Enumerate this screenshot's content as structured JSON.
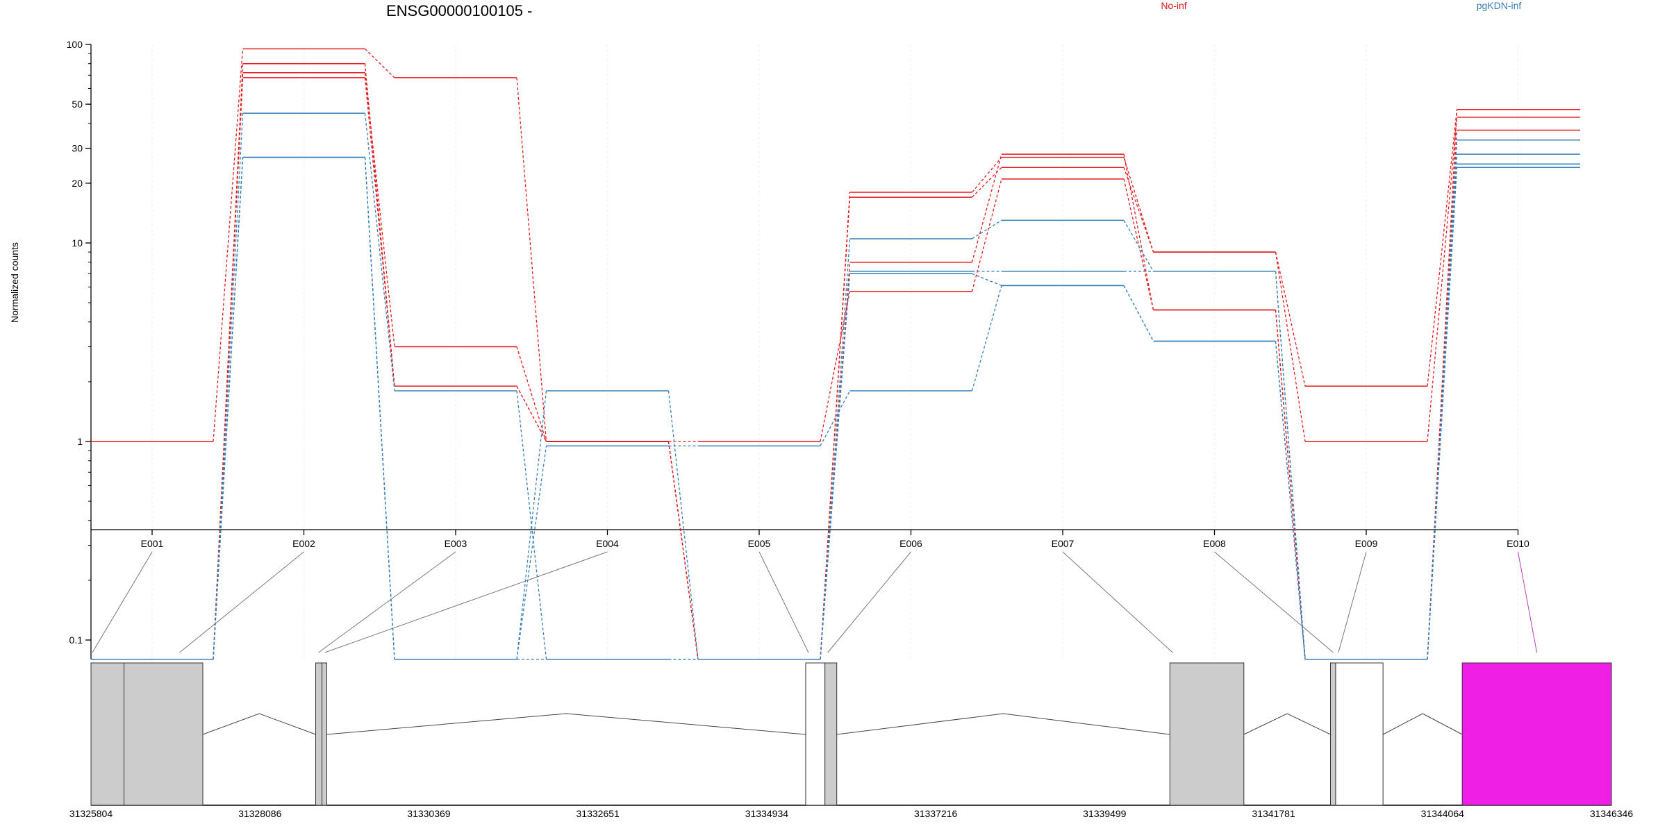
{
  "chart_data": {
    "type": "line",
    "title": "ENSG00000100105 -",
    "ylabel": "Normalized counts",
    "xlabel": "",
    "yscale": "log",
    "ylim": [
      0.08,
      100
    ],
    "y_ticks": [
      100,
      50,
      30,
      20,
      10,
      1,
      0.1
    ],
    "y_tick_labels": [
      "100",
      "50",
      "30",
      "20",
      "10",
      "1",
      "0.1"
    ],
    "grid": "vertical, light",
    "legend_placement": "top",
    "categories": [
      "E001",
      "E002",
      "E003",
      "E004",
      "E005",
      "E006",
      "E007",
      "E008",
      "E009",
      "E010"
    ],
    "legend": [
      {
        "name": "No-inf",
        "color": "#e31a1c"
      },
      {
        "name": "pgKDN-inf",
        "color": "#377eb8"
      }
    ],
    "series": [
      {
        "group": "No-inf",
        "values": [
          1,
          95,
          68,
          1,
          0.08,
          18,
          27,
          9,
          1.9,
          47
        ]
      },
      {
        "group": "No-inf",
        "values": [
          0.08,
          80,
          1.9,
          1,
          0.08,
          17,
          24,
          9,
          1,
          43
        ]
      },
      {
        "group": "No-inf",
        "values": [
          0.08,
          72,
          3,
          1,
          0.08,
          8,
          28,
          4.6,
          0.08,
          37
        ]
      },
      {
        "group": "No-inf",
        "values": [
          0.08,
          68,
          1.9,
          1,
          1,
          5.7,
          21,
          4.6,
          0.08,
          47
        ]
      },
      {
        "group": "pgKDN-inf",
        "values": [
          0.08,
          45,
          1.8,
          0.08,
          0.08,
          10.5,
          13,
          7.2,
          0.08,
          33
        ]
      },
      {
        "group": "pgKDN-inf",
        "values": [
          0.08,
          27,
          0.08,
          1.8,
          0.08,
          7.2,
          7.2,
          7.2,
          0.08,
          28
        ]
      },
      {
        "group": "pgKDN-inf",
        "values": [
          0.08,
          27,
          0.08,
          0.95,
          0.95,
          1.8,
          6.1,
          3.2,
          0.08,
          25
        ]
      },
      {
        "group": "pgKDN-inf",
        "values": [
          0.08,
          27,
          0.08,
          0.08,
          0.08,
          7.0,
          6.1,
          3.2,
          0.08,
          24
        ]
      }
    ],
    "gene_model": {
      "coordinate_labels": [
        "31325804",
        "31328086",
        "31330369",
        "31332651",
        "31334934",
        "31337216",
        "31339499",
        "31341781",
        "31344064",
        "31346346"
      ],
      "coord_range": [
        31325804,
        31346346
      ],
      "exons": [
        {
          "id": "E001",
          "start": 31325804,
          "end": 31326250,
          "fill": "#cccccc"
        },
        {
          "id": "E002",
          "start": 31326250,
          "end": 31327315,
          "fill": "#cccccc"
        },
        {
          "id": "E003",
          "start": 31328840,
          "end": 31328925,
          "fill": "#cccccc"
        },
        {
          "id": "E004",
          "start": 31328925,
          "end": 31328990,
          "fill": "#cccccc"
        },
        {
          "id": "E005",
          "start": 31335460,
          "end": 31335720,
          "fill": "#ffffff"
        },
        {
          "id": "E006",
          "start": 31335720,
          "end": 31335880,
          "fill": "#cccccc"
        },
        {
          "id": "E007",
          "start": 31340380,
          "end": 31341380,
          "fill": "#cccccc"
        },
        {
          "id": "E008",
          "start": 31342550,
          "end": 31342620,
          "fill": "#cccccc"
        },
        {
          "id": "E009",
          "start": 31342620,
          "end": 31343260,
          "fill": "#ffffff"
        },
        {
          "id": "E010",
          "start": 31344330,
          "end": 31346346,
          "fill": "#f01fe6"
        }
      ]
    }
  }
}
